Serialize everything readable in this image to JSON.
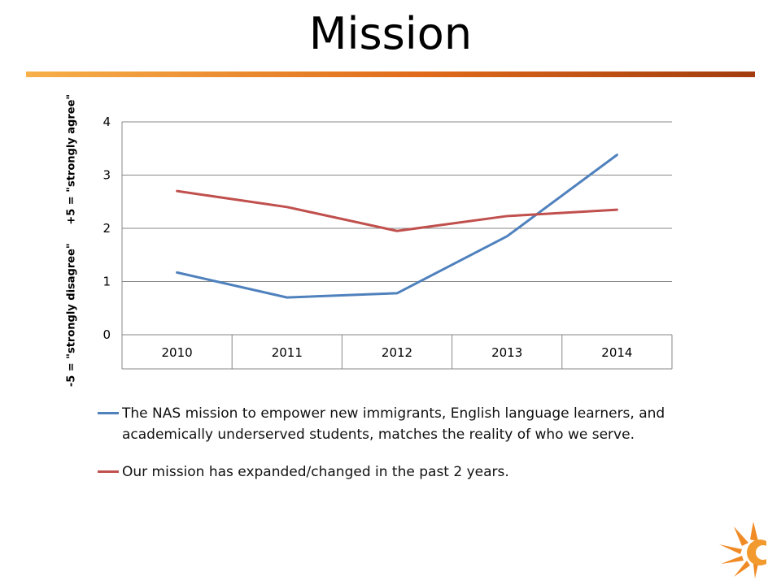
{
  "slide": {
    "title": "Mission",
    "accent_color": "#E36C1A"
  },
  "chart_data": {
    "type": "line",
    "categories": [
      "2010",
      "2011",
      "2012",
      "2013",
      "2014"
    ],
    "series": [
      {
        "name": "The NAS mission to empower new immigrants, English language learners, and academically underserved students, matches the reality of who we serve.",
        "values": [
          1.17,
          0.7,
          0.78,
          1.85,
          3.38
        ],
        "color": "#4F81BD"
      },
      {
        "name": "Our mission has expanded/changed in the past 2 years.",
        "values": [
          2.7,
          2.4,
          1.95,
          2.23,
          2.35
        ],
        "color": "#C0504D"
      }
    ],
    "ylabel": "-5 = \"strongly disagree\"     +5 = \"strongly agree\"",
    "ylim": [
      0,
      4
    ],
    "yticks": [
      "0",
      "1",
      "2",
      "3",
      "4"
    ],
    "grid": true,
    "legend_position": "bottom"
  }
}
